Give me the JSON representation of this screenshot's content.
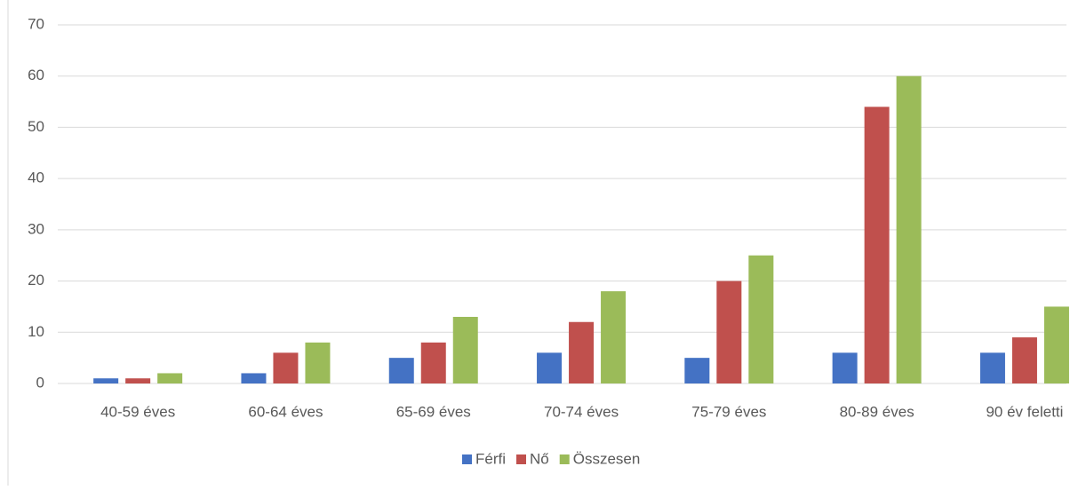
{
  "chart_data": {
    "type": "bar",
    "categories": [
      "40-59 éves",
      "60-64 éves",
      "65-69 éves",
      "70-74 éves",
      "75-79 éves",
      "80-89 éves",
      "90 év feletti"
    ],
    "series": [
      {
        "name": "Férfi",
        "color": "#4472c4",
        "values": [
          1,
          2,
          5,
          6,
          5,
          6,
          6
        ]
      },
      {
        "name": "Nő",
        "color": "#c0504d",
        "values": [
          1,
          6,
          8,
          12,
          20,
          54,
          9
        ]
      },
      {
        "name": "Összesen",
        "color": "#9bbb59",
        "values": [
          2,
          8,
          13,
          18,
          25,
          60,
          15
        ]
      }
    ],
    "ylim": [
      0,
      70
    ],
    "yticks": [
      0,
      10,
      20,
      30,
      40,
      50,
      60,
      70
    ],
    "grid": true,
    "legend": "bottom"
  }
}
